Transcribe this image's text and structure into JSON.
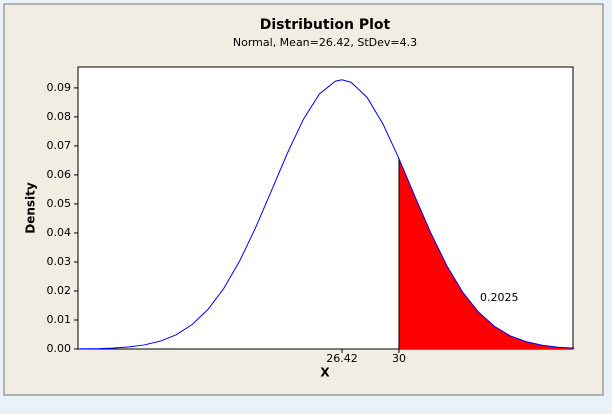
{
  "chart_data": {
    "type": "line",
    "title": "Distribution Plot",
    "subtitle": "Normal, Mean=26.42, StDev=4.3",
    "xlabel": "X",
    "ylabel": "Density",
    "x": [
      10,
      11,
      12,
      13,
      14,
      15,
      16,
      17,
      18,
      19,
      20,
      21,
      22,
      23,
      24,
      25,
      26,
      26.42,
      27,
      28,
      29,
      30,
      31,
      32,
      33,
      34,
      35,
      36,
      37,
      38,
      39,
      40,
      41
    ],
    "series": [
      {
        "color": "#0000ff",
        "values": [
          0.0001,
          0.0001,
          0.0003,
          0.0007,
          0.0014,
          0.0027,
          0.0049,
          0.0084,
          0.0136,
          0.0209,
          0.0304,
          0.0419,
          0.0547,
          0.0676,
          0.0792,
          0.0879,
          0.0923,
          0.0928,
          0.0919,
          0.0867,
          0.0775,
          0.0656,
          0.0526,
          0.04,
          0.0288,
          0.0196,
          0.0127,
          0.0078,
          0.0045,
          0.0025,
          0.0013,
          0.0006,
          0.0003
        ]
      }
    ],
    "shaded": {
      "x_from": 30,
      "color": "#ff0000",
      "label": 0.2025
    },
    "xlim": [
      9.84,
      40.93
    ],
    "xticks": [
      26.42,
      30
    ],
    "ylim": [
      0,
      0.0972
    ],
    "yticks": [
      {
        "value": 0,
        "label": "0.00"
      },
      0.01,
      0.02,
      0.03,
      0.04,
      0.05,
      0.06,
      0.07,
      0.08,
      0.09
    ]
  }
}
